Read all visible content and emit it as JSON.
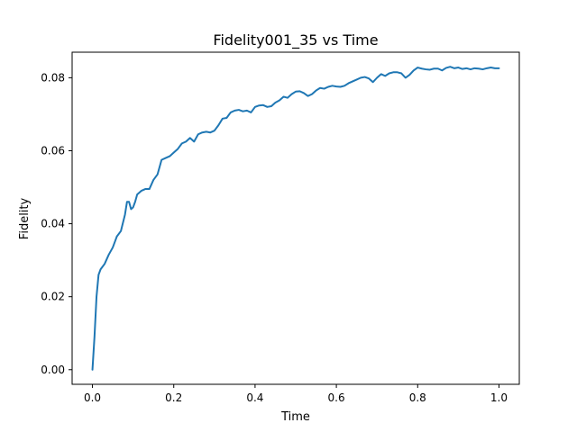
{
  "chart_data": {
    "type": "line",
    "title": "Fidelity001_35  vs Time",
    "xlabel": "Time",
    "ylabel": "Fidelity",
    "xlim": [
      -0.05,
      1.05
    ],
    "ylim": [
      -0.004,
      0.087
    ],
    "xticks": [
      0.0,
      0.2,
      0.4,
      0.6,
      0.8,
      1.0
    ],
    "xtick_labels": [
      "0.0",
      "0.2",
      "0.4",
      "0.6",
      "0.8",
      "1.0"
    ],
    "yticks": [
      0.0,
      0.02,
      0.04,
      0.06,
      0.08
    ],
    "ytick_labels": [
      "0.00",
      "0.02",
      "0.04",
      "0.06",
      "0.08"
    ],
    "grid": false,
    "color": "#1f77b4",
    "series": [
      {
        "x": [
          0.0,
          0.005,
          0.01,
          0.015,
          0.02,
          0.03,
          0.04,
          0.05,
          0.06,
          0.07,
          0.08,
          0.085,
          0.09,
          0.095,
          0.1,
          0.105,
          0.11,
          0.12,
          0.13,
          0.14,
          0.15,
          0.16,
          0.17,
          0.18,
          0.19,
          0.2,
          0.21,
          0.22,
          0.23,
          0.24,
          0.25,
          0.26,
          0.27,
          0.28,
          0.29,
          0.3,
          0.31,
          0.32,
          0.33,
          0.34,
          0.35,
          0.36,
          0.37,
          0.38,
          0.39,
          0.4,
          0.41,
          0.42,
          0.43,
          0.44,
          0.45,
          0.46,
          0.47,
          0.48,
          0.49,
          0.5,
          0.51,
          0.52,
          0.53,
          0.54,
          0.55,
          0.56,
          0.57,
          0.58,
          0.59,
          0.6,
          0.61,
          0.62,
          0.63,
          0.64,
          0.65,
          0.66,
          0.67,
          0.68,
          0.69,
          0.7,
          0.71,
          0.72,
          0.73,
          0.74,
          0.75,
          0.76,
          0.77,
          0.78,
          0.79,
          0.8,
          0.81,
          0.82,
          0.83,
          0.84,
          0.85,
          0.86,
          0.87,
          0.88,
          0.89,
          0.9,
          0.91,
          0.92,
          0.93,
          0.94,
          0.95,
          0.96,
          0.97,
          0.98,
          0.99,
          1.0
        ],
        "y": [
          0.0,
          0.009,
          0.02,
          0.026,
          0.0275,
          0.029,
          0.0315,
          0.0335,
          0.0365,
          0.038,
          0.0425,
          0.046,
          0.046,
          0.044,
          0.0445,
          0.046,
          0.048,
          0.049,
          0.0495,
          0.0495,
          0.052,
          0.0535,
          0.0575,
          0.058,
          0.0585,
          0.0595,
          0.0605,
          0.062,
          0.0625,
          0.0635,
          0.0625,
          0.0645,
          0.065,
          0.0652,
          0.065,
          0.0655,
          0.067,
          0.0688,
          0.069,
          0.0705,
          0.071,
          0.0712,
          0.0708,
          0.071,
          0.0705,
          0.072,
          0.0724,
          0.0725,
          0.072,
          0.0722,
          0.0732,
          0.0738,
          0.0748,
          0.0745,
          0.0755,
          0.0762,
          0.0763,
          0.0758,
          0.075,
          0.0755,
          0.0765,
          0.0772,
          0.077,
          0.0775,
          0.0778,
          0.0776,
          0.0775,
          0.0778,
          0.0785,
          0.079,
          0.0795,
          0.08,
          0.0802,
          0.0798,
          0.0788,
          0.08,
          0.081,
          0.0805,
          0.0812,
          0.0815,
          0.0815,
          0.0812,
          0.08,
          0.0808,
          0.082,
          0.0828,
          0.0825,
          0.0823,
          0.0822,
          0.0825,
          0.0825,
          0.082,
          0.0827,
          0.083,
          0.0826,
          0.0828,
          0.0824,
          0.0826,
          0.0823,
          0.0826,
          0.0825,
          0.0823,
          0.0826,
          0.0828,
          0.0826,
          0.0826
        ]
      }
    ]
  }
}
